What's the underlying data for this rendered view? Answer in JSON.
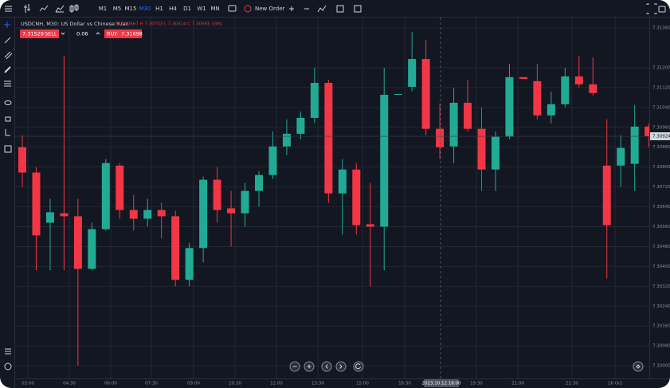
{
  "toolbar": {
    "timeframes": [
      "M1",
      "M5",
      "M15",
      "M30",
      "H1",
      "H4",
      "D1",
      "W1",
      "MN"
    ],
    "new_order": "New Order"
  },
  "chart_data": {
    "type": "candlestick",
    "title": "USDCNH, M30: US Dollar vs Chinese Yuan",
    "ohlc_summary": "O 7.30567 H 7.30733 L 7.30314 C 7.30565 3391",
    "sell_price": "7.31529",
    "sell_label": "SELL",
    "volume": "0.06",
    "buy_label": "BUY",
    "buy_price": "7.31698",
    "up_color": "#22ab94",
    "down_color": "#f23645",
    "grid": true,
    "ylim": [
      7.29949,
      7.31402
    ],
    "yticks": [
      {
        "value": 7.3136,
        "label": "7.31360"
      },
      {
        "value": 7.312,
        "label": "7.31200"
      },
      {
        "value": 7.3112,
        "label": "7.31120"
      },
      {
        "value": 7.3104,
        "label": "7.31040"
      },
      {
        "value": 7.3096,
        "label": "7.30960"
      },
      {
        "value": 7.3088,
        "label": "7.30880"
      },
      {
        "value": 7.308,
        "label": "7.30800"
      },
      {
        "value": 7.3072,
        "label": "7.30720"
      },
      {
        "value": 7.3064,
        "label": "7.30640"
      },
      {
        "value": 7.3056,
        "label": "7.30560"
      },
      {
        "value": 7.3048,
        "label": "7.30480"
      },
      {
        "value": 7.304,
        "label": "7.30400"
      },
      {
        "value": 7.3032,
        "label": "7.30320"
      },
      {
        "value": 7.3024,
        "label": "7.30240"
      },
      {
        "value": 7.3016,
        "label": "7.30160"
      },
      {
        "value": 7.3008,
        "label": "7.30080"
      },
      {
        "value": 7.3,
        "label": "7.30000"
      }
    ],
    "xticks": [
      "03:00",
      "04:30",
      "06:00",
      "07:30",
      "09:00",
      "10:30",
      "12:00",
      "13:30",
      "15:00",
      "16:30",
      "19:30",
      "21:00",
      "22:30",
      "16 Oct"
    ],
    "crosshair_x_label": "2023.10.12 18:00",
    "last_price_label": "7.30924",
    "candles": [
      {
        "open": 7.3088,
        "high": 7.30928,
        "low": 7.3072,
        "close": 7.30778
      },
      {
        "open": 7.30778,
        "high": 7.308,
        "low": 7.30384,
        "close": 7.30525
      },
      {
        "open": 7.30576,
        "high": 7.30672,
        "low": 7.30384,
        "close": 7.30618
      },
      {
        "open": 7.30614,
        "high": 7.31248,
        "low": 7.30384,
        "close": 7.30602
      },
      {
        "open": 7.30602,
        "high": 7.30672,
        "low": 7.3,
        "close": 7.3039
      },
      {
        "open": 7.3039,
        "high": 7.30576,
        "low": 7.30384,
        "close": 7.3055
      },
      {
        "open": 7.3055,
        "high": 7.30832,
        "low": 7.30544,
        "close": 7.30816
      },
      {
        "open": 7.30806,
        "high": 7.30816,
        "low": 7.30592,
        "close": 7.30627
      },
      {
        "open": 7.30627,
        "high": 7.30688,
        "low": 7.30544,
        "close": 7.30592
      },
      {
        "open": 7.30592,
        "high": 7.30672,
        "low": 7.3056,
        "close": 7.30627
      },
      {
        "open": 7.30627,
        "high": 7.30656,
        "low": 7.30512,
        "close": 7.30602
      },
      {
        "open": 7.30602,
        "high": 7.30624,
        "low": 7.3032,
        "close": 7.30346
      },
      {
        "open": 7.30346,
        "high": 7.30496,
        "low": 7.3032,
        "close": 7.30474
      },
      {
        "open": 7.30474,
        "high": 7.30762,
        "low": 7.30416,
        "close": 7.30749
      },
      {
        "open": 7.30749,
        "high": 7.308,
        "low": 7.30576,
        "close": 7.30627
      },
      {
        "open": 7.30634,
        "high": 7.30704,
        "low": 7.3048,
        "close": 7.30614
      },
      {
        "open": 7.30614,
        "high": 7.30736,
        "low": 7.3056,
        "close": 7.30704
      },
      {
        "open": 7.30704,
        "high": 7.30784,
        "low": 7.3064,
        "close": 7.30768
      },
      {
        "open": 7.30768,
        "high": 7.30944,
        "low": 7.30752,
        "close": 7.30883
      },
      {
        "open": 7.30883,
        "high": 7.30992,
        "low": 7.30848,
        "close": 7.30934
      },
      {
        "open": 7.30934,
        "high": 7.31024,
        "low": 7.30912,
        "close": 7.30998
      },
      {
        "open": 7.30998,
        "high": 7.312,
        "low": 7.30976,
        "close": 7.31139
      },
      {
        "open": 7.31139,
        "high": 7.31152,
        "low": 7.30656,
        "close": 7.30694
      },
      {
        "open": 7.30694,
        "high": 7.30832,
        "low": 7.30528,
        "close": 7.3079
      },
      {
        "open": 7.3079,
        "high": 7.30816,
        "low": 7.30528,
        "close": 7.30566
      },
      {
        "open": 7.3057,
        "high": 7.30736,
        "low": 7.3032,
        "close": 7.3056
      },
      {
        "open": 7.3056,
        "high": 7.312,
        "low": 7.30384,
        "close": 7.31091
      },
      {
        "open": 7.31091,
        "high": 7.31094,
        "low": 7.31091,
        "close": 7.31094
      },
      {
        "open": 7.31123,
        "high": 7.31344,
        "low": 7.31104,
        "close": 7.31235
      },
      {
        "open": 7.31235,
        "high": 7.31312,
        "low": 7.30928,
        "close": 7.30954
      },
      {
        "open": 7.30954,
        "high": 7.31056,
        "low": 7.30832,
        "close": 7.3088
      },
      {
        "open": 7.30883,
        "high": 7.3112,
        "low": 7.30816,
        "close": 7.31059
      },
      {
        "open": 7.31059,
        "high": 7.31152,
        "low": 7.30944,
        "close": 7.30954
      },
      {
        "open": 7.30954,
        "high": 7.3104,
        "low": 7.30704,
        "close": 7.3079
      },
      {
        "open": 7.3079,
        "high": 7.30944,
        "low": 7.30704,
        "close": 7.30922
      },
      {
        "open": 7.30922,
        "high": 7.31216,
        "low": 7.30912,
        "close": 7.31162
      },
      {
        "open": 7.31162,
        "high": 7.31162,
        "low": 7.31155,
        "close": 7.31155
      },
      {
        "open": 7.31146,
        "high": 7.31216,
        "low": 7.30992,
        "close": 7.31008
      },
      {
        "open": 7.31008,
        "high": 7.31104,
        "low": 7.30976,
        "close": 7.31053
      },
      {
        "open": 7.31053,
        "high": 7.312,
        "low": 7.3104,
        "close": 7.31165
      },
      {
        "open": 7.31165,
        "high": 7.31248,
        "low": 7.3112,
        "close": 7.31133
      },
      {
        "open": 7.31133,
        "high": 7.31242,
        "low": 7.31088,
        "close": 7.31098
      },
      {
        "open": 7.30806,
        "high": 7.30992,
        "low": 7.30352,
        "close": 7.30566
      },
      {
        "open": 7.30806,
        "high": 7.30928,
        "low": 7.3072,
        "close": 7.30877
      },
      {
        "open": 7.30813,
        "high": 7.3105,
        "low": 7.30704,
        "close": 7.30963
      },
      {
        "open": 7.30963,
        "high": 7.30976,
        "low": 7.3088,
        "close": 7.30924
      }
    ]
  }
}
